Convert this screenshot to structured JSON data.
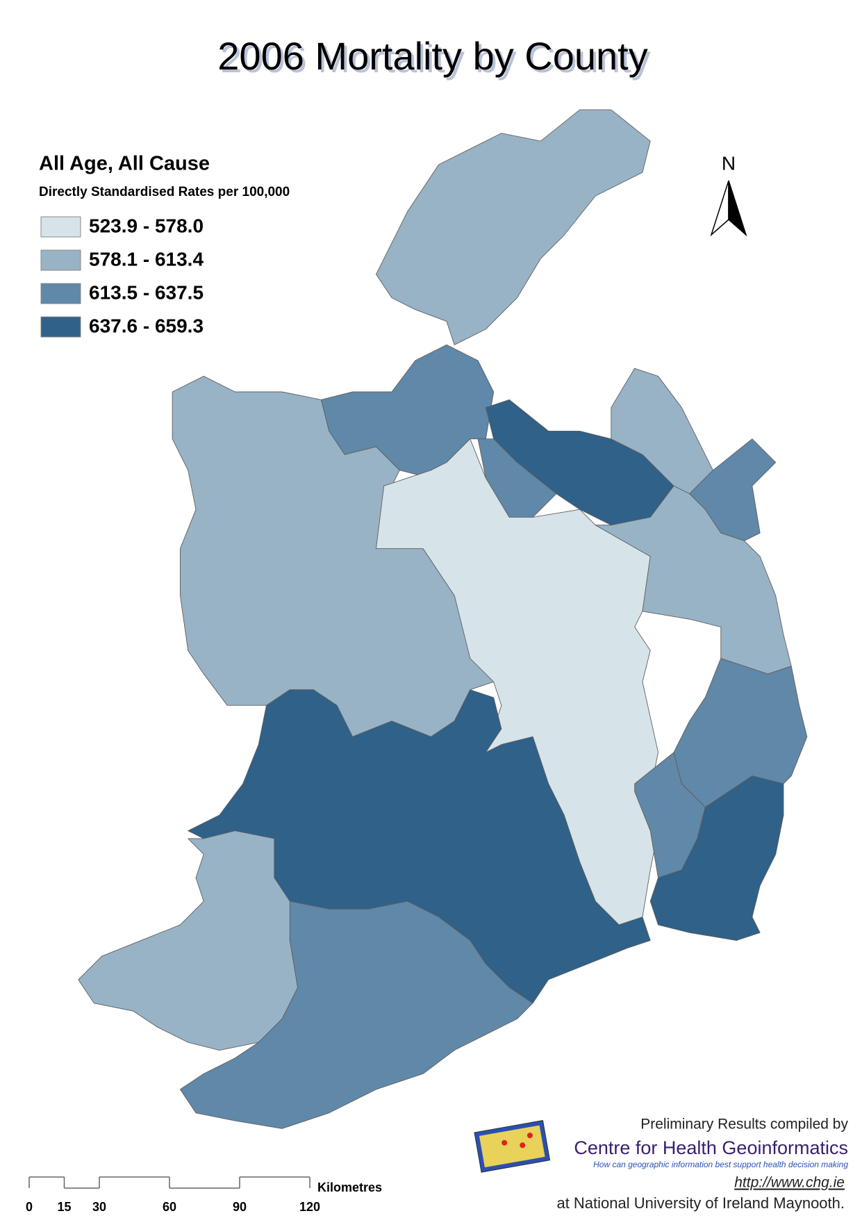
{
  "title": "2006 Mortality by County",
  "legend": {
    "title": "All Age, All Cause",
    "subtitle": "Directly Standardised Rates per 100,000",
    "classes": [
      {
        "label": "523.9 - 578.0",
        "color": "#d6e4ea"
      },
      {
        "label": "578.1 - 613.4",
        "color": "#98b3c6"
      },
      {
        "label": "613.5 - 637.5",
        "color": "#6088a8"
      },
      {
        "label": "637.6 - 659.3",
        "color": "#2f6189"
      }
    ]
  },
  "north_arrow": {
    "label": "N"
  },
  "scale_bar": {
    "unit": "Kilometres",
    "ticks": [
      0,
      15,
      30,
      60,
      90,
      120
    ]
  },
  "credits": {
    "line1": "Preliminary Results compiled by",
    "organisation": "Centre for Health Geoinformatics",
    "tagline": "How can geographic information best support health decision making",
    "url": "http://www.chg.ie",
    "institution": "at National University of Ireland Maynooth."
  }
}
